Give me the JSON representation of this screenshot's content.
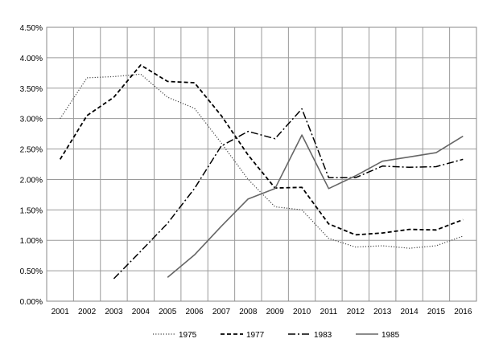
{
  "chart_data": {
    "type": "line",
    "title": "",
    "xlabel": "",
    "ylabel": "",
    "x": [
      "2001",
      "2002",
      "2003",
      "2004",
      "2005",
      "2006",
      "2007",
      "2008",
      "2009",
      "2010",
      "2011",
      "2012",
      "2013",
      "2014",
      "2015",
      "2016"
    ],
    "ylim": [
      0,
      4.5
    ],
    "y_ticks": [
      "0.00%",
      "0.50%",
      "1.00%",
      "1.50%",
      "2.00%",
      "2.50%",
      "3.00%",
      "3.50%",
      "4.00%",
      "4.50%"
    ],
    "grid": true,
    "legend_position": "bottom",
    "series": [
      {
        "name": "1975",
        "style": "dotted",
        "color": "#444444",
        "values": [
          3.0,
          3.67,
          3.69,
          3.73,
          3.35,
          3.17,
          2.6,
          2.0,
          1.55,
          1.5,
          1.03,
          0.89,
          0.91,
          0.87,
          0.91,
          1.07
        ]
      },
      {
        "name": "1977",
        "style": "dashed",
        "color": "#000000",
        "values": [
          2.33,
          3.05,
          3.35,
          3.88,
          3.61,
          3.59,
          3.05,
          2.4,
          1.86,
          1.87,
          1.27,
          1.09,
          1.12,
          1.18,
          1.17,
          1.34
        ]
      },
      {
        "name": "1983",
        "style": "dash-dot",
        "color": "#000000",
        "values": [
          null,
          null,
          0.37,
          0.82,
          1.28,
          1.85,
          2.55,
          2.79,
          2.67,
          3.16,
          2.03,
          2.03,
          2.22,
          2.2,
          2.21,
          2.33
        ]
      },
      {
        "name": "1985",
        "style": "solid",
        "color": "#666666",
        "values": [
          null,
          null,
          null,
          null,
          0.39,
          0.76,
          1.23,
          1.68,
          1.85,
          2.73,
          1.85,
          2.06,
          2.3,
          2.37,
          2.44,
          2.71
        ]
      }
    ]
  }
}
